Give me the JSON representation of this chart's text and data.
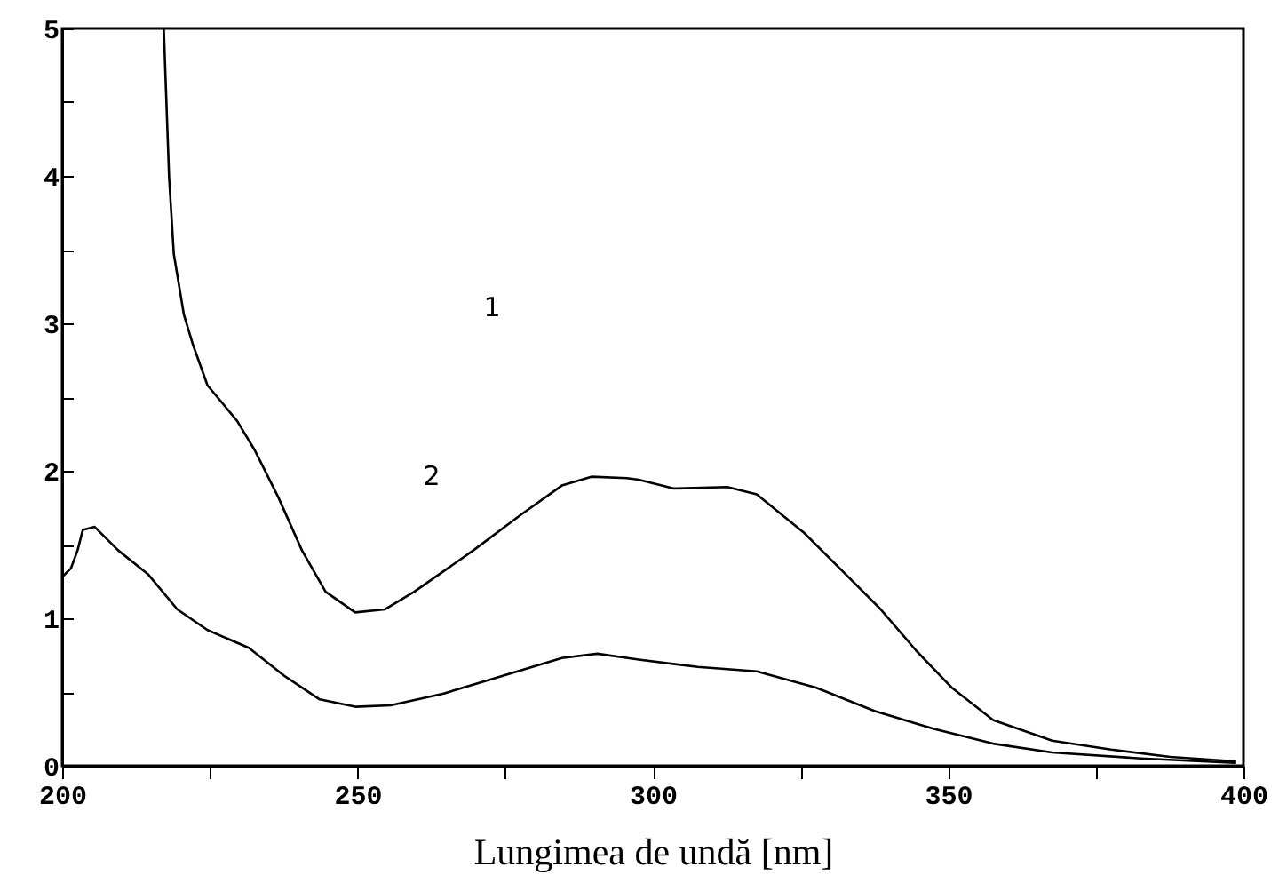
{
  "chart_data": {
    "type": "line",
    "xlabel": "Lungimea de undă [nm]",
    "xlim": [
      200,
      400
    ],
    "ylim": [
      0,
      5
    ],
    "xticks": [
      200,
      {
        "value": 225,
        "label": null
      },
      250,
      {
        "value": 275,
        "label": null
      },
      300,
      {
        "value": 325,
        "label": null
      },
      350,
      {
        "value": 375,
        "label": null
      },
      400
    ],
    "yticks": [
      0,
      {
        "value": 0.5,
        "label": null
      },
      1,
      {
        "value": 1.5,
        "label": null
      },
      2,
      {
        "value": 2.5,
        "label": null
      },
      3,
      {
        "value": 3.5,
        "label": null
      },
      4,
      {
        "value": 4.5,
        "label": null
      },
      5
    ],
    "grid": false,
    "marker": "none",
    "line_style": "solid",
    "annotations": [
      "1",
      "2"
    ],
    "series": [
      {
        "color": "#000000",
        "x": [
          217.2,
          218.1,
          218.9,
          220.6,
          222.1,
          224.6,
          229.6,
          232.6,
          236.6,
          240.6,
          244.6,
          249.6,
          254.6,
          259.6,
          269.6,
          277.6,
          284.6,
          289.6,
          295.6,
          297.6,
          303.6,
          312.6,
          317.6,
          325.6,
          332.6,
          338.6,
          344.6,
          350.6,
          357.6,
          367.6,
          377.6,
          387.6,
          398.6
        ],
        "values": [
          5.0,
          3.99,
          3.47,
          3.06,
          2.86,
          2.58,
          2.34,
          2.14,
          1.82,
          1.46,
          1.18,
          1.04,
          1.06,
          1.18,
          1.46,
          1.7,
          1.9,
          1.96,
          1.95,
          1.94,
          1.88,
          1.89,
          1.84,
          1.58,
          1.3,
          1.06,
          0.78,
          0.53,
          0.31,
          0.17,
          0.11,
          0.06,
          0.03
        ]
      },
      {
        "color": "#000000",
        "x": [
          200,
          201.5,
          202.6,
          203.5,
          205.5,
          209.5,
          214.5,
          219.5,
          224.6,
          231.6,
          237.6,
          243.6,
          249.6,
          255.6,
          264.6,
          274.6,
          284.6,
          290.6,
          297.6,
          307.6,
          317.6,
          327.6,
          337.6,
          347.6,
          357.6,
          367.6,
          382.6,
          398.6
        ],
        "values": [
          1.28,
          1.34,
          1.46,
          1.6,
          1.62,
          1.46,
          1.3,
          1.06,
          0.92,
          0.8,
          0.61,
          0.45,
          0.4,
          0.41,
          0.49,
          0.61,
          0.73,
          0.76,
          0.72,
          0.67,
          0.64,
          0.53,
          0.37,
          0.25,
          0.15,
          0.09,
          0.05,
          0.02
        ]
      }
    ]
  }
}
